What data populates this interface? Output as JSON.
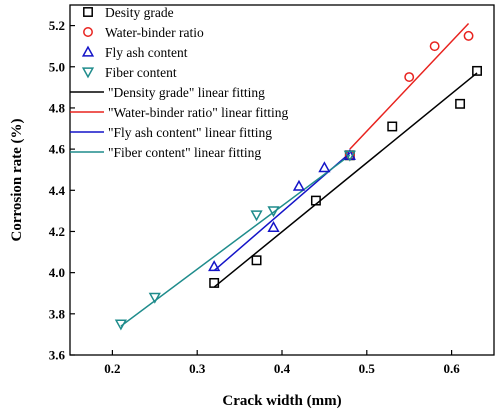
{
  "chart_data": {
    "type": "scatter",
    "title": "",
    "xlabel": "Crack width (mm)",
    "ylabel": "Corrosion rate (%)",
    "xlim": [
      0.15,
      0.65
    ],
    "ylim": [
      3.6,
      5.3
    ],
    "xticks": [
      {
        "value": 0.2,
        "label": "0.2"
      },
      {
        "value": 0.3,
        "label": "0.3"
      },
      {
        "value": 0.4,
        "label": "0.4"
      },
      {
        "value": 0.5,
        "label": "0.5"
      },
      {
        "value": 0.6,
        "label": "0.6"
      }
    ],
    "yticks": [
      {
        "value": 3.6,
        "label": "3.6"
      },
      {
        "value": 3.8,
        "label": "3.8"
      },
      {
        "value": 4.0,
        "label": "4.0"
      },
      {
        "value": 4.2,
        "label": "4.2"
      },
      {
        "value": 4.4,
        "label": "4.4"
      },
      {
        "value": 4.6,
        "label": "4.6"
      },
      {
        "value": 4.8,
        "label": "4.8"
      },
      {
        "value": 5.0,
        "label": "5.0"
      },
      {
        "value": 5.2,
        "label": "5.2"
      }
    ],
    "grid": false,
    "legend_position": "top-left",
    "series": [
      {
        "name": "Desity grade",
        "marker": "square",
        "color": "#000000",
        "points": [
          {
            "x": 0.32,
            "y": 3.95
          },
          {
            "x": 0.37,
            "y": 4.06
          },
          {
            "x": 0.44,
            "y": 4.35
          },
          {
            "x": 0.48,
            "y": 4.57
          },
          {
            "x": 0.53,
            "y": 4.71
          },
          {
            "x": 0.61,
            "y": 4.82
          },
          {
            "x": 0.63,
            "y": 4.98
          }
        ]
      },
      {
        "name": "Water-binder ratio",
        "marker": "circle",
        "color": "#e8231f",
        "points": [
          {
            "x": 0.48,
            "y": 4.57
          },
          {
            "x": 0.55,
            "y": 4.95
          },
          {
            "x": 0.58,
            "y": 5.1
          },
          {
            "x": 0.62,
            "y": 5.15
          }
        ]
      },
      {
        "name": "Fly ash content",
        "marker": "triangle-up",
        "color": "#1414c8",
        "points": [
          {
            "x": 0.32,
            "y": 4.03
          },
          {
            "x": 0.39,
            "y": 4.22
          },
          {
            "x": 0.42,
            "y": 4.42
          },
          {
            "x": 0.45,
            "y": 4.51
          },
          {
            "x": 0.48,
            "y": 4.57
          }
        ]
      },
      {
        "name": "Fiber content",
        "marker": "triangle-down",
        "color": "#1f8c8c",
        "points": [
          {
            "x": 0.21,
            "y": 3.75
          },
          {
            "x": 0.25,
            "y": 3.88
          },
          {
            "x": 0.37,
            "y": 4.28
          },
          {
            "x": 0.39,
            "y": 4.3
          },
          {
            "x": 0.48,
            "y": 4.57
          }
        ]
      }
    ],
    "fits": [
      {
        "name": "\"Density grade\" linear fitting",
        "color": "#000000",
        "x": [
          0.32,
          0.63
        ],
        "y": [
          3.93,
          4.97
        ]
      },
      {
        "name": "\"Water-binder ratio\" linear fitting",
        "color": "#e8231f",
        "x": [
          0.48,
          0.62
        ],
        "y": [
          4.6,
          5.21
        ]
      },
      {
        "name": "\"Fly ash content\" linear fitting",
        "color": "#1414c8",
        "x": [
          0.32,
          0.48
        ],
        "y": [
          4.01,
          4.58
        ]
      },
      {
        "name": "\"Fiber content\" linear fitting",
        "color": "#1f8c8c",
        "x": [
          0.21,
          0.48
        ],
        "y": [
          3.74,
          4.57
        ]
      }
    ]
  }
}
